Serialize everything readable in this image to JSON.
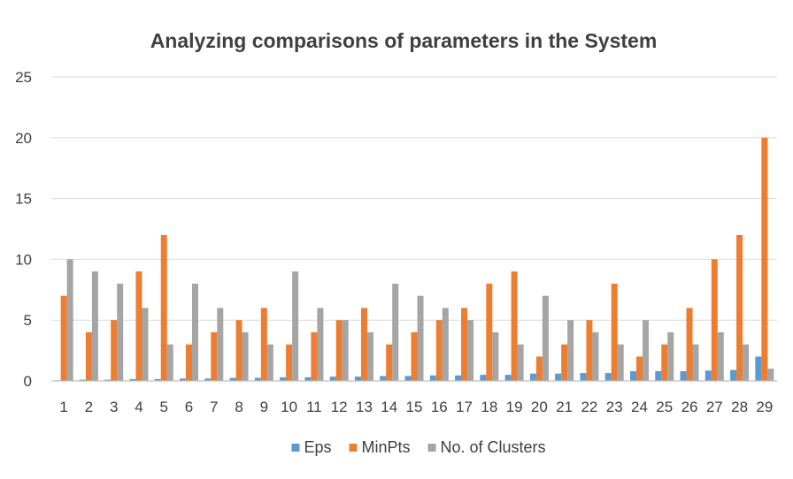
{
  "chart_data": {
    "type": "bar",
    "title": "Analyzing comparisons of parameters in the System",
    "xlabel": "",
    "ylabel": "",
    "ylim": [
      0,
      25
    ],
    "yticks": [
      0,
      5,
      10,
      15,
      20,
      25
    ],
    "grid": true,
    "legend_position": "bottom",
    "categories": [
      "1",
      "2",
      "3",
      "4",
      "5",
      "6",
      "7",
      "8",
      "9",
      "10",
      "11",
      "12",
      "13",
      "14",
      "15",
      "16",
      "17",
      "18",
      "19",
      "20",
      "21",
      "22",
      "23",
      "24",
      "25",
      "26",
      "27",
      "28",
      "29"
    ],
    "series": [
      {
        "name": "Eps",
        "color": "#5b9bd5",
        "values": [
          0.05,
          0.1,
          0.1,
          0.15,
          0.15,
          0.2,
          0.2,
          0.25,
          0.25,
          0.3,
          0.3,
          0.35,
          0.35,
          0.4,
          0.4,
          0.45,
          0.45,
          0.5,
          0.5,
          0.6,
          0.6,
          0.65,
          0.65,
          0.8,
          0.8,
          0.8,
          0.85,
          0.9,
          2
        ]
      },
      {
        "name": "MinPts",
        "color": "#ed7d31",
        "values": [
          7,
          4,
          5,
          9,
          12,
          3,
          4,
          5,
          6,
          3,
          4,
          5,
          6,
          3,
          4,
          5,
          6,
          8,
          9,
          2,
          3,
          5,
          8,
          2,
          3,
          6,
          10,
          12,
          20
        ]
      },
      {
        "name": "No. of Clusters",
        "color": "#a5a5a5",
        "values": [
          10,
          9,
          8,
          6,
          3,
          8,
          6,
          4,
          3,
          9,
          6,
          5,
          4,
          8,
          7,
          6,
          5,
          4,
          3,
          7,
          5,
          4,
          3,
          5,
          4,
          3,
          4,
          3,
          1
        ]
      }
    ]
  }
}
